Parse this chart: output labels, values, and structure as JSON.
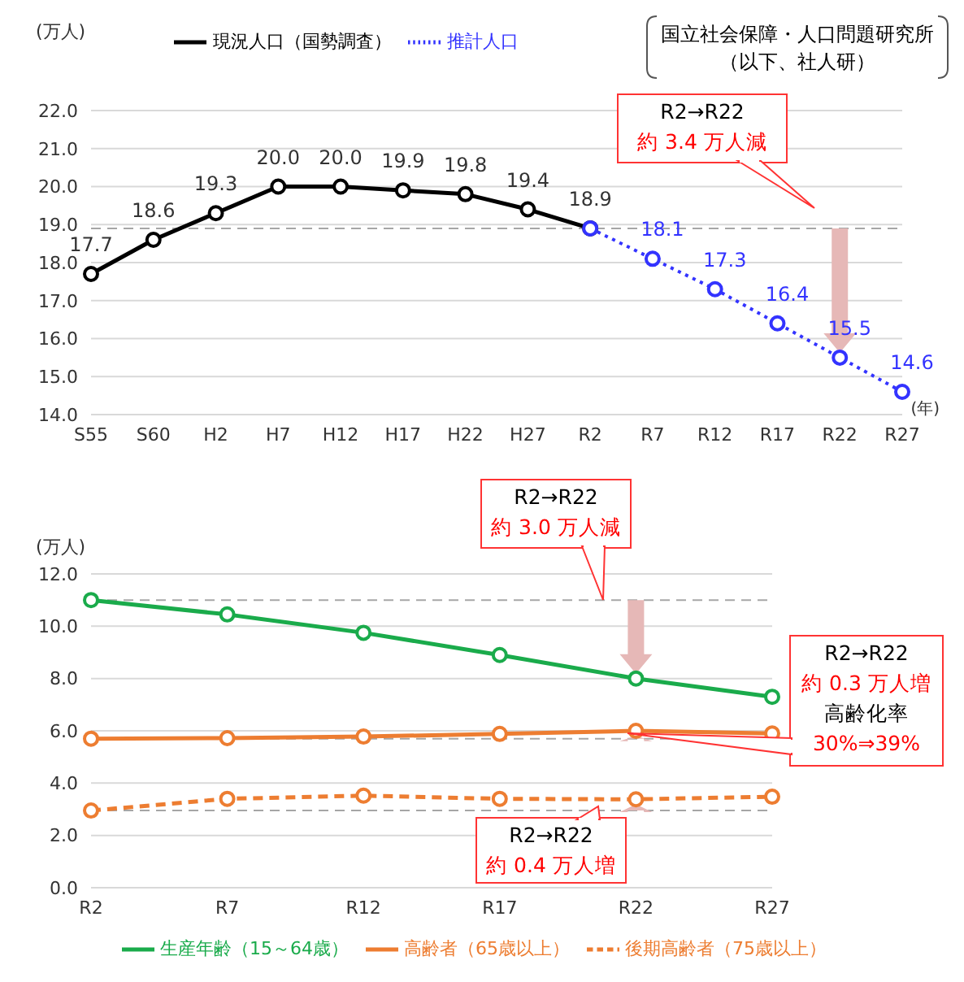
{
  "chart_data": [
    {
      "type": "line",
      "ylabel": "(万人)",
      "xlabel": "(年)",
      "categories": [
        "S55",
        "S60",
        "H2",
        "H7",
        "H12",
        "H17",
        "H22",
        "H27",
        "R2",
        "R7",
        "R12",
        "R17",
        "R22",
        "R27"
      ],
      "series": [
        {
          "name": "現況人口（国勢調査）",
          "color": "#000000",
          "line_style": "solid",
          "values": [
            17.7,
            18.6,
            19.3,
            20.0,
            20.0,
            19.9,
            19.8,
            19.4,
            18.9,
            null,
            null,
            null,
            null,
            null
          ],
          "value_labels": [
            "17.7",
            "18.6",
            "19.3",
            "20.0",
            "20.0",
            "19.9",
            "19.8",
            "19.4",
            "18.9",
            null,
            null,
            null,
            null,
            null
          ]
        },
        {
          "name": "推計人口",
          "color": "#3333ff",
          "line_style": "dotted",
          "values": [
            null,
            null,
            null,
            null,
            null,
            null,
            null,
            null,
            18.9,
            18.1,
            17.3,
            16.4,
            15.5,
            14.6
          ],
          "value_labels": [
            null,
            null,
            null,
            null,
            null,
            null,
            null,
            null,
            null,
            "18.1",
            "17.3",
            "16.4",
            "15.5",
            "14.6"
          ]
        }
      ],
      "ylim": [
        14,
        22
      ],
      "yticks": [
        {
          "value": 14,
          "label": "14.0"
        },
        {
          "value": 15,
          "label": "15.0"
        },
        {
          "value": 16,
          "label": "16.0"
        },
        {
          "value": 17,
          "label": "17.0"
        },
        {
          "value": 18,
          "label": "18.0"
        },
        {
          "value": 19,
          "label": "19.0"
        },
        {
          "value": 20,
          "label": "20.0"
        },
        {
          "value": 21,
          "label": "21.0"
        },
        {
          "value": 22,
          "label": "22.0"
        }
      ],
      "grid": "y",
      "legend": "top",
      "marker": "circle",
      "ref_lines": [
        {
          "axis": "y",
          "value": 18.9,
          "color": "#a6a6a6",
          "line_style": "dashed"
        }
      ],
      "annotations": [
        "R2→R22",
        "約 3.4 万人減",
        "国立社会保障・人口問題研究所",
        "（以下、社人研）"
      ]
    },
    {
      "type": "line",
      "ylabel": "(万人)",
      "categories": [
        "R2",
        "R7",
        "R12",
        "R17",
        "R22",
        "R27"
      ],
      "series": [
        {
          "name": "生産年齢（15～64歳）",
          "color": "#1aab4b",
          "line_style": "solid",
          "values": [
            11.0,
            10.45,
            9.75,
            8.9,
            8.0,
            7.3
          ]
        },
        {
          "name": "高齢者（65歳以上）",
          "color": "#ed7d31",
          "line_style": "solid",
          "values": [
            5.7,
            5.72,
            5.78,
            5.88,
            6.0,
            5.9
          ]
        },
        {
          "name": "後期高齢者（75歳以上）",
          "color": "#ed7d31",
          "line_style": "dashed",
          "values": [
            2.95,
            3.4,
            3.52,
            3.4,
            3.38,
            3.48
          ]
        }
      ],
      "ylim": [
        0,
        12
      ],
      "yticks": [
        {
          "value": 0,
          "label": "0.0"
        },
        {
          "value": 2,
          "label": "2.0"
        },
        {
          "value": 4,
          "label": "4.0"
        },
        {
          "value": 6,
          "label": "6.0"
        },
        {
          "value": 8,
          "label": "8.0"
        },
        {
          "value": 10,
          "label": "10.0"
        },
        {
          "value": 12,
          "label": "12.0"
        }
      ],
      "grid": "y",
      "legend": "bottom",
      "marker": "circle",
      "ref_lines": [
        {
          "axis": "y",
          "value": 11.0,
          "color": "#a6a6a6",
          "line_style": "dashed"
        },
        {
          "axis": "y",
          "value": 5.7,
          "color": "#a6a6a6",
          "line_style": "dashed"
        },
        {
          "axis": "y",
          "value": 2.95,
          "color": "#a6a6a6",
          "line_style": "dashed"
        }
      ],
      "annotations": [
        "R2→R22",
        "約 3.0 万人減",
        "R2→R22",
        "約 0.3 万人増",
        "高齢化率",
        "30%⇒39%",
        "R2→R22",
        "約 0.4 万人増"
      ]
    }
  ]
}
